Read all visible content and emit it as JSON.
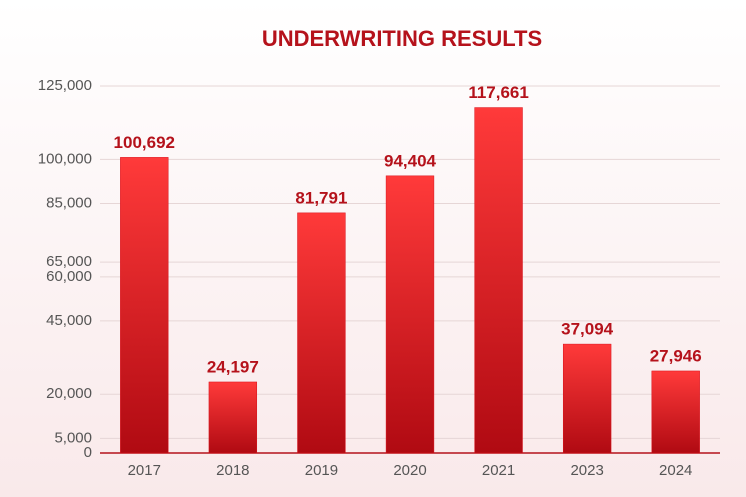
{
  "chart_data": {
    "type": "bar",
    "title": "UNDERWRITING RESULTS",
    "categories": [
      "2017",
      "2018",
      "2019",
      "2020",
      "2021",
      "2023",
      "2024"
    ],
    "values": [
      100692,
      24197,
      81791,
      94404,
      117661,
      37094,
      27946
    ],
    "value_labels": [
      "100,692",
      "24,197",
      "81,791",
      "94,404",
      "117,661",
      "37,094",
      "27,946"
    ],
    "color": "#d8101a",
    "ylim": [
      0,
      125000
    ],
    "yticks": [
      0,
      {
        "value": 5000,
        "label": "5,000"
      },
      {
        "value": 20000,
        "label": "20,000"
      },
      {
        "value": 45000,
        "label": "45,000"
      },
      {
        "value": 65000,
        "label": "65,000"
      },
      {
        "value": 60000,
        "label": "60,000"
      },
      {
        "value": 85000,
        "label": "85,000"
      },
      {
        "value": 100000,
        "label": "100,000"
      },
      {
        "value": 125000,
        "label": "125,000"
      }
    ],
    "grid": true
  }
}
